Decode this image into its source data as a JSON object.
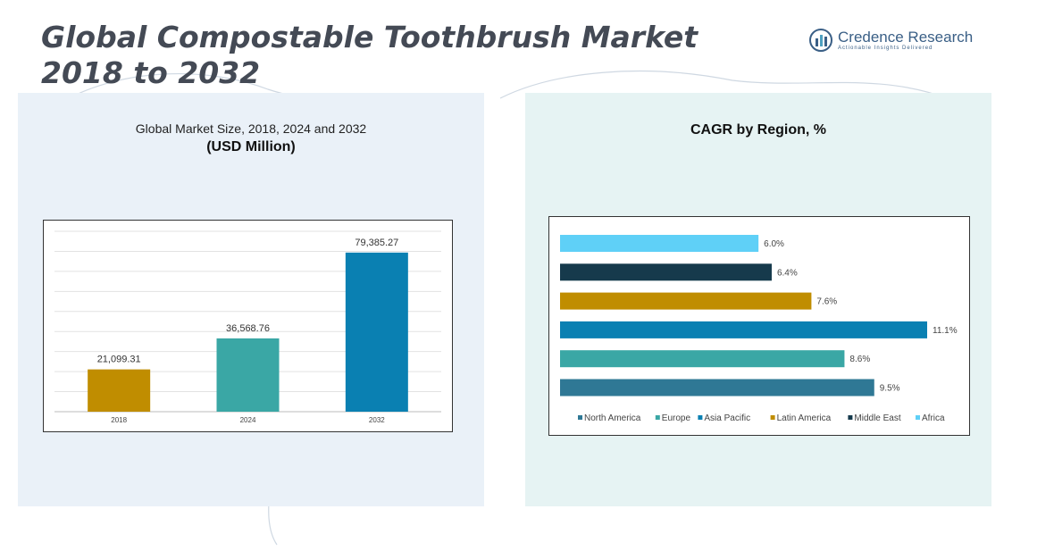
{
  "header": {
    "title_line1": "Global Compostable Toothbrush Market",
    "title_line2": "2018 to 2032",
    "logo_name": "Credence Research",
    "logo_tagline": "Actionable Insights Delivered"
  },
  "left_panel": {
    "subtitle": "Global Market Size, 2018, 2024 and 2032",
    "unit": "(USD Million)"
  },
  "right_panel": {
    "title": "CAGR by Region, %"
  },
  "chart_data": [
    {
      "type": "bar",
      "title": "Global Market Size, 2018, 2024 and 2032",
      "subtitle": "(USD Million)",
      "categories": [
        "2018",
        "2024",
        "2032"
      ],
      "values": [
        21099.31,
        36568.76,
        79385.27
      ],
      "value_labels": [
        "21,099.31",
        "36,568.76",
        "79,385.27"
      ],
      "colors": [
        "#c08d00",
        "#3aa7a5",
        "#0a80b2"
      ],
      "ylim": [
        0,
        90000
      ],
      "grid": true
    },
    {
      "type": "bar",
      "orientation": "horizontal",
      "title": "CAGR by Region, %",
      "series": [
        {
          "name": "North America",
          "value": 9.5,
          "label": "9.5%",
          "color": "#2f7895"
        },
        {
          "name": "Europe",
          "value": 8.6,
          "label": "8.6%",
          "color": "#3aa7a5"
        },
        {
          "name": "Asia Pacific",
          "value": 11.1,
          "label": "11.1%",
          "color": "#0a80b2"
        },
        {
          "name": "Latin America",
          "value": 7.6,
          "label": "7.6%",
          "color": "#c08d00"
        },
        {
          "name": "Middle East",
          "value": 6.4,
          "label": "6.4%",
          "color": "#163a4c"
        },
        {
          "name": "Africa",
          "value": 6.0,
          "label": "6.0%",
          "color": "#5fd0f7"
        }
      ],
      "xlim": [
        0,
        11.1
      ],
      "legend": "bottom"
    }
  ]
}
